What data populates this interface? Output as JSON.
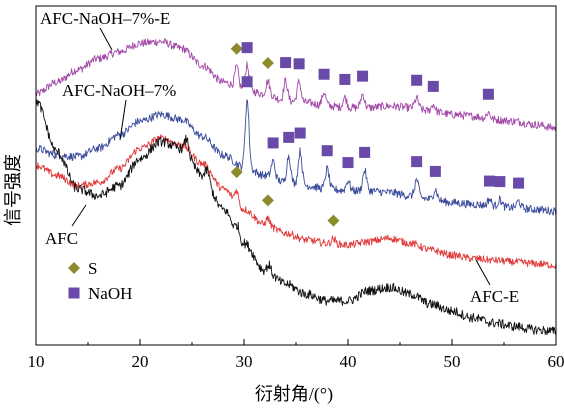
{
  "chart_data": {
    "type": "line",
    "xlabel": "衍射角/(°)",
    "ylabel": "信号强度",
    "xlim": [
      10,
      60
    ],
    "xticks": [
      10,
      20,
      30,
      40,
      50,
      60
    ],
    "grid": false,
    "legend_position": "bottom-left",
    "legend": [
      {
        "label": "S",
        "marker": "diamond",
        "color": "#8b8b2e"
      },
      {
        "label": "NaOH",
        "marker": "square",
        "color": "#6a4aa8"
      }
    ],
    "series": [
      {
        "name": "AFC-NaOH–7%-E",
        "color": "#a24aa8",
        "x": [
          10,
          12,
          14,
          16,
          18,
          20,
          22,
          24,
          26,
          28,
          30,
          32,
          34,
          36,
          38,
          40,
          42,
          44,
          46,
          48,
          50,
          52,
          54,
          56,
          58,
          60
        ],
        "y": [
          0.74,
          0.775,
          0.812,
          0.845,
          0.865,
          0.89,
          0.895,
          0.875,
          0.825,
          0.775,
          0.755,
          0.74,
          0.72,
          0.715,
          0.705,
          0.7,
          0.7,
          0.705,
          0.7,
          0.69,
          0.68,
          0.675,
          0.665,
          0.66,
          0.65,
          0.64
        ],
        "peaks": [
          {
            "x": 29.3,
            "h": 0.06
          },
          {
            "x": 30.3,
            "h": 0.07
          },
          {
            "x": 32.3,
            "h": 0.04
          },
          {
            "x": 34.0,
            "h": 0.06
          },
          {
            "x": 35.3,
            "h": 0.06
          },
          {
            "x": 37.7,
            "h": 0.04
          },
          {
            "x": 39.7,
            "h": 0.03
          },
          {
            "x": 41.4,
            "h": 0.04
          },
          {
            "x": 46.6,
            "h": 0.03
          },
          {
            "x": 48.2,
            "h": 0.02
          },
          {
            "x": 53.5,
            "h": 0.02
          }
        ],
        "label": "AFC-NaOH–7%-E"
      },
      {
        "name": "AFC-NaOH–7%",
        "color": "#3c4d9c",
        "x": [
          10,
          12,
          14,
          16,
          18,
          20,
          22,
          24,
          26,
          28,
          30,
          32,
          34,
          36,
          38,
          40,
          42,
          44,
          46,
          48,
          50,
          52,
          54,
          56,
          58,
          60
        ],
        "y": [
          0.58,
          0.56,
          0.555,
          0.58,
          0.62,
          0.66,
          0.68,
          0.665,
          0.615,
          0.56,
          0.525,
          0.5,
          0.48,
          0.47,
          0.46,
          0.455,
          0.455,
          0.45,
          0.44,
          0.43,
          0.42,
          0.415,
          0.41,
          0.405,
          0.4,
          0.395
        ],
        "peaks": [
          {
            "x": 30.3,
            "h": 0.2
          },
          {
            "x": 32.8,
            "h": 0.05
          },
          {
            "x": 34.3,
            "h": 0.08
          },
          {
            "x": 35.4,
            "h": 0.1
          },
          {
            "x": 38.0,
            "h": 0.06
          },
          {
            "x": 40.0,
            "h": 0.03
          },
          {
            "x": 41.6,
            "h": 0.06
          },
          {
            "x": 46.6,
            "h": 0.05
          },
          {
            "x": 48.4,
            "h": 0.03
          },
          {
            "x": 53.6,
            "h": 0.02
          },
          {
            "x": 54.6,
            "h": 0.02
          },
          {
            "x": 56.4,
            "h": 0.02
          }
        ],
        "label": "AFC-NaOH–7%"
      },
      {
        "name": "AFC-E",
        "color": "#e03a3a",
        "x": [
          10,
          12,
          14,
          16,
          18,
          20,
          22,
          24,
          26,
          28,
          30,
          32,
          34,
          36,
          38,
          40,
          42,
          44,
          46,
          48,
          50,
          52,
          54,
          56,
          58,
          60
        ],
        "y": [
          0.53,
          0.5,
          0.47,
          0.48,
          0.52,
          0.58,
          0.61,
          0.59,
          0.535,
          0.46,
          0.4,
          0.355,
          0.33,
          0.31,
          0.3,
          0.295,
          0.305,
          0.315,
          0.3,
          0.28,
          0.265,
          0.255,
          0.25,
          0.245,
          0.24,
          0.235
        ],
        "peaks": [
          {
            "x": 29.3,
            "h": 0.04
          },
          {
            "x": 32.3,
            "h": 0.02
          },
          {
            "x": 38.6,
            "h": 0.015
          }
        ],
        "label": "AFC-E"
      },
      {
        "name": "AFC",
        "color": "#111111",
        "x": [
          10,
          12,
          14,
          16,
          18,
          20,
          22,
          24,
          26,
          28,
          30,
          32,
          34,
          36,
          38,
          40,
          42,
          44,
          46,
          48,
          50,
          52,
          54,
          56,
          58,
          60
        ],
        "y": [
          0.72,
          0.57,
          0.46,
          0.44,
          0.47,
          0.55,
          0.6,
          0.58,
          0.5,
          0.4,
          0.3,
          0.22,
          0.18,
          0.15,
          0.13,
          0.13,
          0.16,
          0.17,
          0.15,
          0.12,
          0.1,
          0.08,
          0.065,
          0.055,
          0.045,
          0.04
        ],
        "peaks": [
          {
            "x": 24.5,
            "h": 0.04
          },
          {
            "x": 26.5,
            "h": 0.03
          },
          {
            "x": 29.4,
            "h": 0.03
          },
          {
            "x": 32.4,
            "h": 0.02
          }
        ],
        "label": "AFC"
      }
    ],
    "markers": [
      {
        "type": "S",
        "series": "AFC-NaOH–7%-E",
        "x": [
          29.3,
          32.3
        ]
      },
      {
        "type": "NaOH",
        "series": "AFC-NaOH–7%-E",
        "x": [
          30.3,
          34.0,
          35.3,
          37.7,
          39.7,
          41.4,
          46.6,
          48.2,
          53.5
        ]
      },
      {
        "type": "NaOH",
        "series": "AFC-NaOH–7%",
        "x": [
          30.3,
          32.8,
          34.3,
          35.4,
          38.0,
          40.0,
          41.6,
          46.6,
          48.4,
          53.6,
          54.6,
          56.4
        ]
      },
      {
        "type": "S",
        "series": "AFC-E",
        "x": [
          29.3,
          32.3,
          38.6
        ]
      }
    ]
  }
}
